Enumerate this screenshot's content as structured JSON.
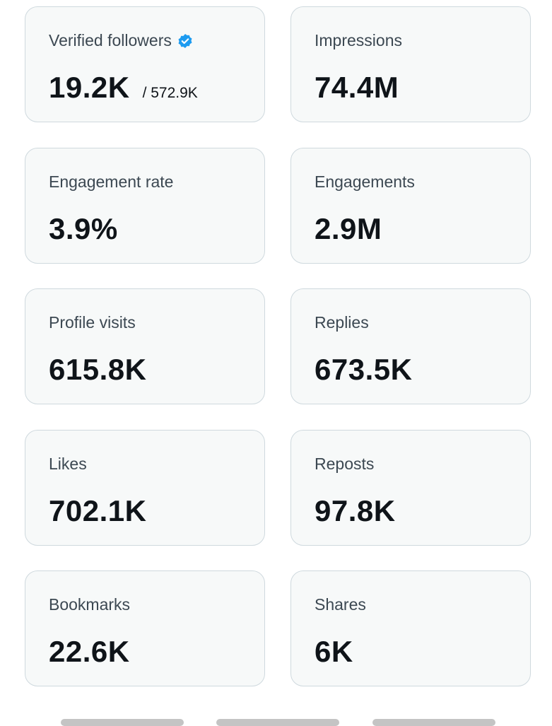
{
  "cards": [
    {
      "label": "Verified followers",
      "value": "19.2K",
      "sub": "/ 572.9K"
    },
    {
      "label": "Impressions",
      "value": "74.4M"
    },
    {
      "label": "Engagement rate",
      "value": "3.9%"
    },
    {
      "label": "Engagements",
      "value": "2.9M"
    },
    {
      "label": "Profile visits",
      "value": "615.8K"
    },
    {
      "label": "Replies",
      "value": "673.5K"
    },
    {
      "label": "Likes",
      "value": "702.1K"
    },
    {
      "label": "Reposts",
      "value": "97.8K"
    },
    {
      "label": "Bookmarks",
      "value": "22.6K"
    },
    {
      "label": "Shares",
      "value": "6K"
    }
  ]
}
